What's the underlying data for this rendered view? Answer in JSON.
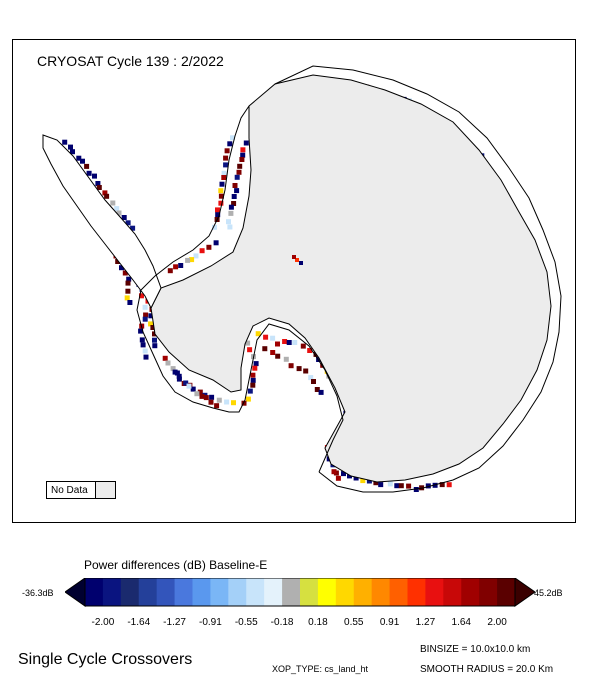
{
  "map": {
    "title": "CRYOSAT Cycle 139 : 2/2022",
    "no_data_label": "No Data",
    "no_data_color": "#ececec"
  },
  "colorbar": {
    "title": "Power differences (dB) Baseline-E",
    "min_label": "-36.3dB",
    "max_label": "45.2dB",
    "ticks": [
      "-2.00",
      "-1.64",
      "-1.27",
      "-0.91",
      "-0.55",
      "-0.18",
      "0.18",
      "0.55",
      "0.91",
      "1.27",
      "1.64",
      "2.00"
    ],
    "colors": [
      "#00006e",
      "#0a1480",
      "#1a2a6e",
      "#24409a",
      "#3355bb",
      "#4a78dd",
      "#5a98ee",
      "#7ab6f6",
      "#a4d0f8",
      "#c8e4fa",
      "#e4f2fb",
      "#b0b0b0",
      "#d6e040",
      "#ffff00",
      "#ffd800",
      "#ffb000",
      "#ff8800",
      "#ff6000",
      "#ff3000",
      "#e81010",
      "#c80808",
      "#a00000",
      "#800000",
      "#5a0000"
    ]
  },
  "footer": {
    "left_title": "Single Cycle Crossovers",
    "binsize": "BINSIZE = 10.0x10.0 km",
    "xop_type": "XOP_TYPE: cs_land_ht",
    "smooth_radius": "SMOOTH RADIUS = 20.0 Km"
  }
}
